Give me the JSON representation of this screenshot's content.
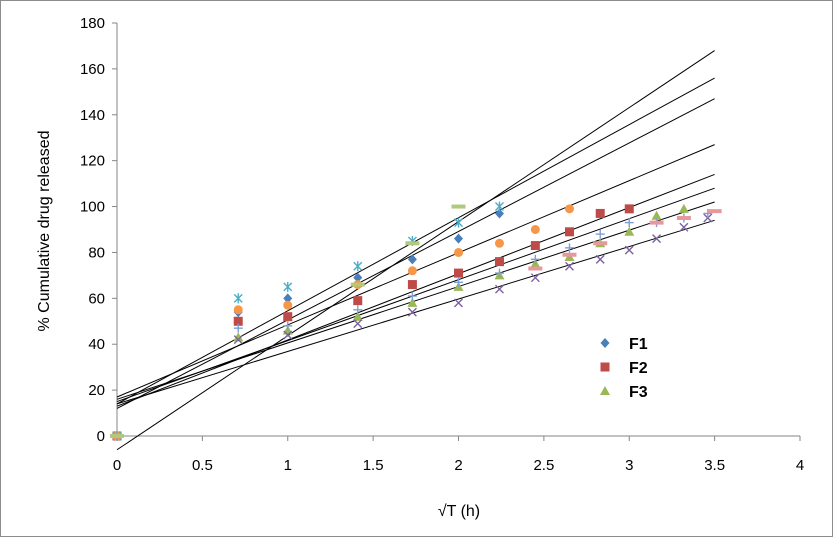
{
  "chart_data": {
    "type": "scatter",
    "title": "",
    "xlabel": "√T (h)",
    "ylabel": "% Cumulative drug released",
    "xlim": [
      0,
      4
    ],
    "ylim": [
      0,
      180
    ],
    "x_ticks": [
      "0",
      "0.5",
      "1",
      "1.5",
      "2",
      "2.5",
      "3",
      "3.5",
      "4"
    ],
    "y_ticks": [
      "0",
      "20",
      "40",
      "60",
      "80",
      "100",
      "120",
      "140",
      "160",
      "180"
    ],
    "grid": false,
    "legend_position": "right",
    "series": [
      {
        "name": "F1",
        "marker": "diamond",
        "color": "#4a7ebb",
        "points": [
          [
            0,
            0
          ],
          [
            0.71,
            54
          ],
          [
            1,
            60
          ],
          [
            1.41,
            69
          ],
          [
            1.73,
            77
          ],
          [
            2,
            86
          ],
          [
            2.24,
            97
          ]
        ],
        "trendline": [
          [
            0,
            14
          ],
          [
            3.5,
            156
          ]
        ]
      },
      {
        "name": "F2",
        "marker": "square",
        "color": "#be4b48",
        "points": [
          [
            0,
            0
          ],
          [
            0.71,
            50
          ],
          [
            1,
            52
          ],
          [
            1.41,
            59
          ],
          [
            1.73,
            66
          ],
          [
            2,
            71
          ],
          [
            2.24,
            76
          ],
          [
            2.45,
            83
          ],
          [
            2.65,
            89
          ],
          [
            2.83,
            97
          ],
          [
            3,
            99
          ]
        ],
        "trendline": [
          [
            0,
            15
          ],
          [
            3.5,
            108
          ]
        ]
      },
      {
        "name": "F3",
        "marker": "triangle",
        "color": "#98b954",
        "points": [
          [
            0,
            0
          ],
          [
            0.71,
            43
          ],
          [
            1,
            46
          ],
          [
            1.41,
            52
          ],
          [
            1.73,
            58
          ],
          [
            2,
            65
          ],
          [
            2.24,
            70
          ],
          [
            2.45,
            75
          ],
          [
            2.65,
            78
          ],
          [
            2.83,
            84
          ],
          [
            3,
            89
          ],
          [
            3.16,
            96
          ],
          [
            3.32,
            99
          ]
        ],
        "trendline": [
          [
            0,
            16
          ],
          [
            3.5,
            102
          ]
        ]
      },
      {
        "name": "",
        "marker": "x",
        "color": "#7d60a0",
        "points": [
          [
            0,
            0
          ],
          [
            0.71,
            42
          ],
          [
            1,
            44
          ],
          [
            1.41,
            49
          ],
          [
            1.73,
            54
          ],
          [
            2,
            58
          ],
          [
            2.24,
            64
          ],
          [
            2.45,
            69
          ],
          [
            2.65,
            74
          ],
          [
            2.83,
            77
          ],
          [
            3,
            81
          ],
          [
            3.16,
            86
          ],
          [
            3.32,
            91
          ],
          [
            3.46,
            95
          ]
        ],
        "trendline": [
          [
            0,
            14
          ],
          [
            3.5,
            94
          ]
        ]
      },
      {
        "name": "",
        "marker": "asterisk",
        "color": "#4bacc6",
        "points": [
          [
            0,
            0
          ],
          [
            0.71,
            60
          ],
          [
            1,
            65
          ],
          [
            1.41,
            74
          ],
          [
            1.73,
            85
          ],
          [
            2,
            93
          ],
          [
            2.24,
            100
          ]
        ],
        "trendline": [
          [
            0,
            12
          ],
          [
            3.5,
            147
          ]
        ]
      },
      {
        "name": "",
        "marker": "circle",
        "color": "#f79646",
        "points": [
          [
            0,
            0
          ],
          [
            0.71,
            55
          ],
          [
            1,
            57
          ],
          [
            1.41,
            66
          ],
          [
            1.73,
            72
          ],
          [
            2,
            80
          ],
          [
            2.24,
            84
          ],
          [
            2.45,
            90
          ],
          [
            2.65,
            99
          ]
        ],
        "trendline": [
          [
            0,
            17
          ],
          [
            3.5,
            127
          ]
        ]
      },
      {
        "name": "",
        "marker": "plus",
        "color": "#7f9fd2",
        "points": [
          [
            0,
            0
          ],
          [
            0.71,
            47
          ],
          [
            1,
            48
          ],
          [
            1.41,
            55
          ],
          [
            1.73,
            61
          ],
          [
            2,
            67
          ],
          [
            2.24,
            71
          ],
          [
            2.45,
            77
          ],
          [
            2.65,
            82
          ],
          [
            2.83,
            88
          ],
          [
            3,
            93
          ],
          [
            3.16,
            93
          ],
          [
            3.32,
            95
          ],
          [
            3.46,
            97
          ]
        ],
        "trendline": [
          [
            0,
            13
          ],
          [
            3.5,
            114
          ]
        ]
      },
      {
        "name": "",
        "marker": "dash",
        "color": "#b0ca7c",
        "points": [
          [
            0,
            0
          ],
          [
            1.41,
            66
          ],
          [
            1.73,
            84
          ],
          [
            2,
            100
          ]
        ],
        "trendline": [
          [
            0,
            -6
          ],
          [
            3.5,
            168
          ]
        ]
      },
      {
        "name": "",
        "marker": "dash",
        "color": "#e6989c",
        "points": [
          [
            2.45,
            73
          ],
          [
            2.65,
            79
          ],
          [
            2.83,
            84
          ],
          [
            3.16,
            93
          ],
          [
            3.32,
            95
          ],
          [
            3.5,
            98
          ]
        ],
        "trendline": null
      }
    ]
  }
}
